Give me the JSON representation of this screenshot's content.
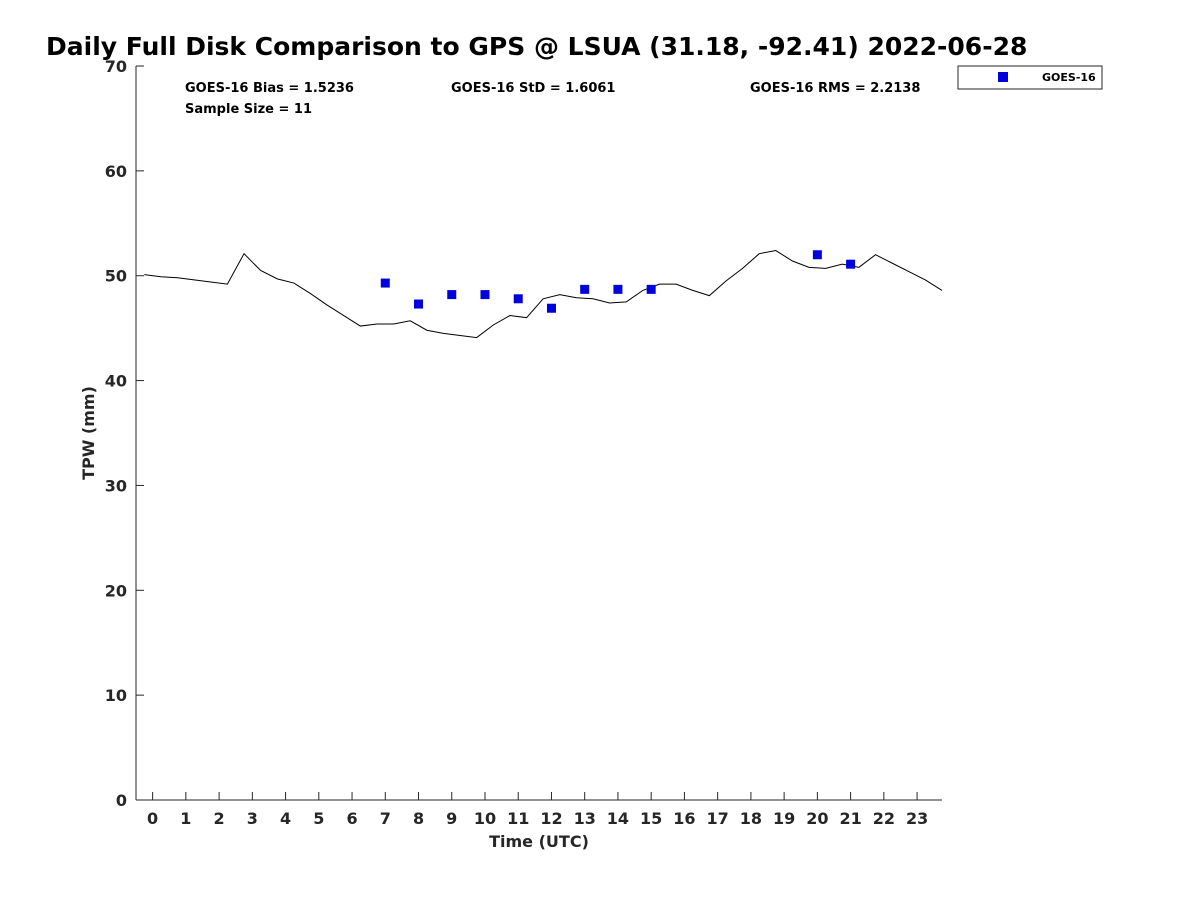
{
  "chart_data": {
    "type": "line",
    "title": "Daily Full Disk Comparison to GPS @ LSUA (31.18, -92.41) 2022-06-28",
    "xlabel": "Time (UTC)",
    "ylabel": "TPW (mm)",
    "xlim": [
      -0.5,
      23.75
    ],
    "ylim": [
      0,
      70
    ],
    "x_ticks": [
      "0",
      "1",
      "2",
      "3",
      "4",
      "5",
      "6",
      "7",
      "8",
      "9",
      "10",
      "11",
      "12",
      "13",
      "14",
      "15",
      "16",
      "17",
      "18",
      "19",
      "20",
      "21",
      "22",
      "23"
    ],
    "y_ticks": [
      "0",
      "10",
      "20",
      "30",
      "40",
      "50",
      "60",
      "70"
    ],
    "grid": false,
    "legend_position": "outside-top-right",
    "stats": {
      "bias": "GOES-16 Bias = 1.5236",
      "std": "GOES-16 StD = 1.6061",
      "rms": "GOES-16 RMS = 2.2138",
      "sample": "Sample Size = 11"
    },
    "series": [
      {
        "kind": "line",
        "color": "#000000",
        "x": [
          -0.25,
          0.25,
          0.75,
          1.25,
          1.75,
          2.25,
          2.75,
          3.25,
          3.75,
          4.25,
          4.75,
          5.25,
          5.75,
          6.25,
          6.75,
          7.25,
          7.75,
          8.25,
          8.75,
          9.25,
          9.75,
          10.25,
          10.75,
          11.25,
          11.75,
          12.25,
          12.75,
          13.25,
          13.75,
          14.25,
          14.75,
          15.25,
          15.75,
          16.25,
          16.75,
          17.25,
          17.75,
          18.25,
          18.75,
          19.25,
          19.75,
          20.25,
          20.75,
          21.25,
          21.75,
          22.25,
          22.75,
          23.25,
          23.75
        ],
        "y": [
          50.1,
          49.9,
          49.8,
          49.6,
          49.4,
          49.2,
          52.1,
          50.5,
          49.7,
          49.3,
          48.3,
          47.2,
          46.2,
          45.2,
          45.4,
          45.4,
          45.7,
          44.8,
          44.5,
          44.3,
          44.1,
          45.3,
          46.2,
          46.0,
          47.8,
          48.2,
          47.9,
          47.8,
          47.4,
          47.5,
          48.6,
          49.2,
          49.2,
          48.6,
          48.1,
          49.5,
          50.7,
          52.1,
          52.4,
          51.4,
          50.8,
          50.7,
          51.1,
          50.8,
          52.0,
          51.2,
          50.4,
          49.6,
          48.6
        ]
      },
      {
        "name": "GOES-16",
        "kind": "scatter",
        "marker": "square",
        "color": "#0000dd",
        "x": [
          7,
          8,
          9,
          10,
          11,
          12,
          13,
          14,
          15,
          20,
          21
        ],
        "y": [
          49.3,
          47.3,
          48.2,
          48.2,
          47.8,
          46.9,
          48.7,
          48.7,
          48.7,
          52.0,
          51.1
        ]
      }
    ]
  }
}
